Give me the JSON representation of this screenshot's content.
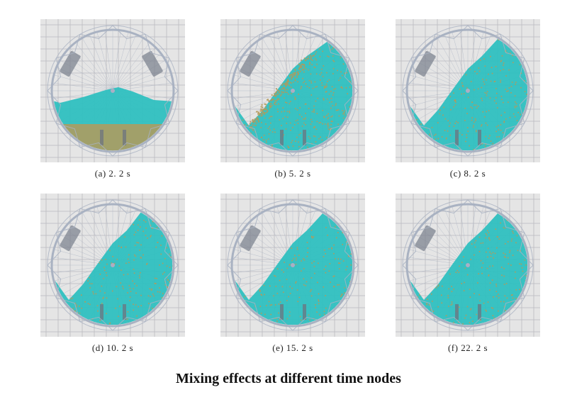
{
  "figure": {
    "title": "Mixing effects at different time nodes",
    "panels": [
      {
        "id": "a",
        "label": "(a) 2. 2 s",
        "time_s": 2.2
      },
      {
        "id": "b",
        "label": "(b) 5. 2 s",
        "time_s": 5.2
      },
      {
        "id": "c",
        "label": "(c) 8. 2 s",
        "time_s": 8.2
      },
      {
        "id": "d",
        "label": "(d) 10. 2 s",
        "time_s": 10.2
      },
      {
        "id": "e",
        "label": "(e) 15. 2 s",
        "time_s": 15.2
      },
      {
        "id": "f",
        "label": "(f) 22. 2 s",
        "time_s": 22.2
      }
    ]
  },
  "colors": {
    "grid_background": "#e5e5e5",
    "grid_line": "#b9b9bf",
    "drum_frame": "#a9b2c2",
    "particle_cyan": "#2fc0c0",
    "particle_tan": "#b49a5a",
    "lifter": "#6e7480"
  }
}
